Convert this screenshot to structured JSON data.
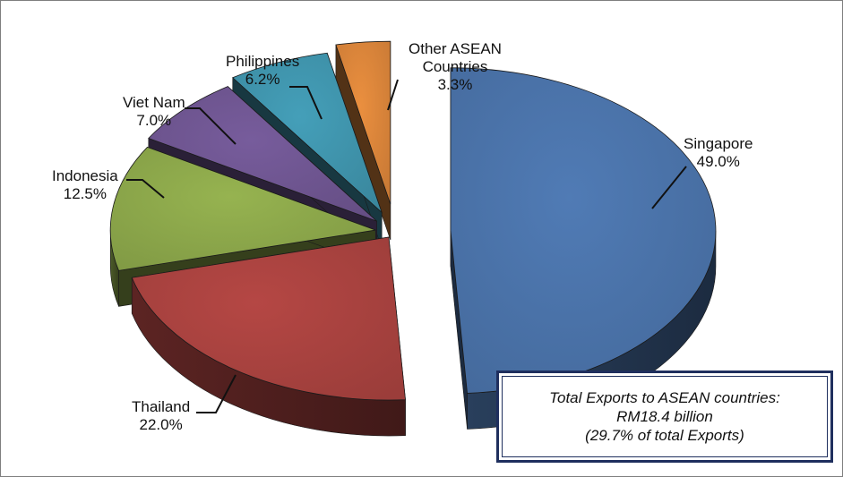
{
  "chart_data": {
    "type": "pie",
    "categories": [
      "Singapore",
      "Thailand",
      "Indonesia",
      "Viet Nam",
      "Philippines",
      "Other ASEAN Countries"
    ],
    "values": [
      49.0,
      22.0,
      12.5,
      7.0,
      6.2,
      3.3
    ],
    "data_labels": [
      "49.0%",
      "22.0%",
      "12.5%",
      "7.0%",
      "6.2%",
      "3.3%"
    ],
    "style": "3d-exploded",
    "colors": [
      "#4a72a8",
      "#a8423f",
      "#8ba64a",
      "#6e5590",
      "#3f93ab",
      "#d9843a"
    ],
    "title": "",
    "legend": "none",
    "annotation": {
      "line1": "Total Exports to ASEAN countries:",
      "line2": "RM18.4  billion",
      "line3": "(29.7%  of total Exports)"
    }
  },
  "labels": {
    "singapore": {
      "name": "Singapore",
      "pct": "49.0%"
    },
    "thailand": {
      "name": "Thailand",
      "pct": "22.0%"
    },
    "indonesia": {
      "name": "Indonesia",
      "pct": "12.5%"
    },
    "vietnam": {
      "name": "Viet Nam",
      "pct": "7.0%"
    },
    "philippines": {
      "name": "Philippines",
      "pct": "6.2%"
    },
    "other": {
      "name1": "Other ASEAN",
      "name2": "Countries",
      "pct": "3.3%"
    }
  }
}
